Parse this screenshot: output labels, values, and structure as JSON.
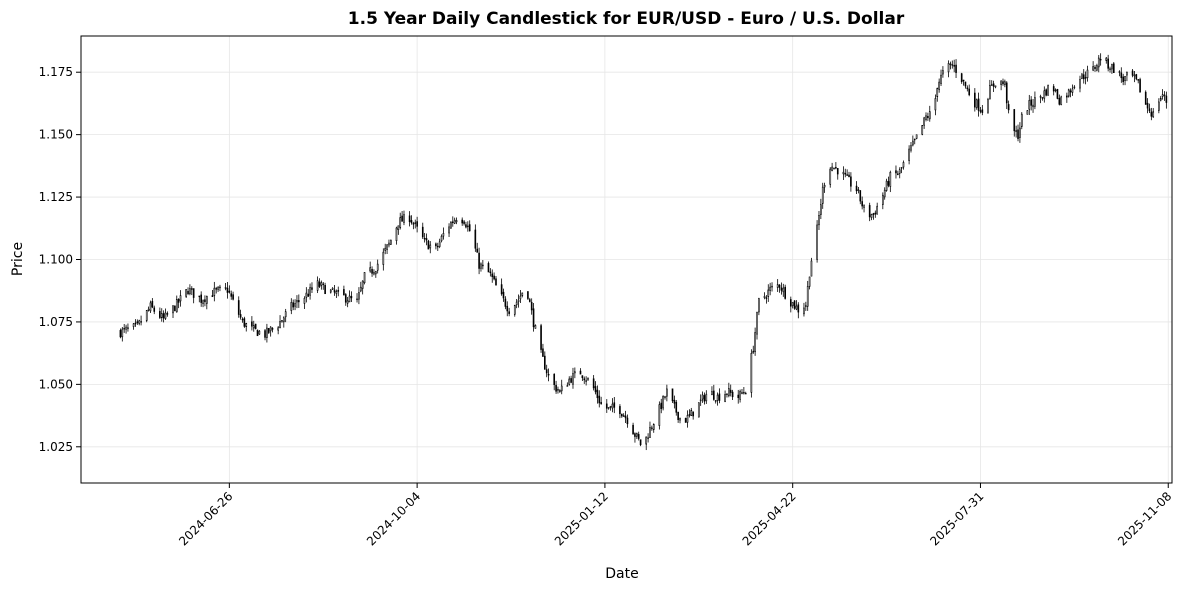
{
  "chart_data": {
    "type": "candlestick",
    "title": "1.5 Year Daily Candlestick for EUR/USD - Euro / U.S. Dollar",
    "xlabel": "Date",
    "ylabel": "Price",
    "ylim": [
      1.0105,
      1.1895
    ],
    "xlim": [
      "2024-04-08",
      "2025-11-10"
    ],
    "grid": true,
    "x_ticks": [
      "2024-06-26",
      "2024-10-04",
      "2025-01-12",
      "2025-04-22",
      "2025-07-31",
      "2025-11-08"
    ],
    "y_ticks": [
      "1.025",
      "1.050",
      "1.075",
      "1.100",
      "1.125",
      "1.150",
      "1.175"
    ],
    "anchors": [
      [
        "2024-04-29",
        1.071
      ],
      [
        "2024-05-08",
        1.073
      ],
      [
        "2024-05-15",
        1.081
      ],
      [
        "2024-05-22",
        1.076
      ],
      [
        "2024-05-29",
        1.082
      ],
      [
        "2024-06-04",
        1.088
      ],
      [
        "2024-06-11",
        1.084
      ],
      [
        "2024-06-18",
        1.087
      ],
      [
        "2024-06-25",
        1.088
      ],
      [
        "2024-06-28",
        1.083
      ],
      [
        "2024-07-03",
        1.075
      ],
      [
        "2024-07-08",
        1.072
      ],
      [
        "2024-07-15",
        1.07
      ],
      [
        "2024-07-22",
        1.074
      ],
      [
        "2024-07-29",
        1.081
      ],
      [
        "2024-08-05",
        1.085
      ],
      [
        "2024-08-12",
        1.09
      ],
      [
        "2024-08-19",
        1.087
      ],
      [
        "2024-08-26",
        1.085
      ],
      [
        "2024-09-02",
        1.083
      ],
      [
        "2024-09-06",
        1.093
      ],
      [
        "2024-09-12",
        1.097
      ],
      [
        "2024-09-19",
        1.106
      ],
      [
        "2024-09-24",
        1.115
      ],
      [
        "2024-09-30",
        1.117
      ],
      [
        "2024-10-04",
        1.112
      ],
      [
        "2024-10-08",
        1.107
      ],
      [
        "2024-10-14",
        1.104
      ],
      [
        "2024-10-20",
        1.113
      ],
      [
        "2024-10-25",
        1.117
      ],
      [
        "2024-10-29",
        1.116
      ],
      [
        "2024-11-02",
        1.11
      ],
      [
        "2024-11-06",
        1.098
      ],
      [
        "2024-11-12",
        1.094
      ],
      [
        "2024-11-17",
        1.086
      ],
      [
        "2024-11-22",
        1.08
      ],
      [
        "2024-11-27",
        1.084
      ],
      [
        "2024-12-01",
        1.09
      ],
      [
        "2024-12-05",
        1.075
      ],
      [
        "2024-12-09",
        1.062
      ],
      [
        "2024-12-14",
        1.051
      ],
      [
        "2024-12-19",
        1.047
      ],
      [
        "2024-12-24",
        1.052
      ],
      [
        "2024-12-30",
        1.055
      ],
      [
        "2025-01-05",
        1.05
      ],
      [
        "2025-01-10",
        1.042
      ],
      [
        "2025-01-14",
        1.04
      ],
      [
        "2025-01-19",
        1.041
      ],
      [
        "2025-01-24",
        1.036
      ],
      [
        "2025-01-28",
        1.03
      ],
      [
        "2025-02-01",
        1.025
      ],
      [
        "2025-02-05",
        1.032
      ],
      [
        "2025-02-10",
        1.04
      ],
      [
        "2025-02-14",
        1.047
      ],
      [
        "2025-02-17",
        1.042
      ],
      [
        "2025-02-22",
        1.035
      ],
      [
        "2025-02-26",
        1.037
      ],
      [
        "2025-03-03",
        1.042
      ],
      [
        "2025-03-08",
        1.047
      ],
      [
        "2025-03-13",
        1.045
      ],
      [
        "2025-03-18",
        1.047
      ],
      [
        "2025-03-24",
        1.045
      ],
      [
        "2025-03-28",
        1.048
      ],
      [
        "2025-04-01",
        1.065
      ],
      [
        "2025-04-04",
        1.083
      ],
      [
        "2025-04-10",
        1.088
      ],
      [
        "2025-04-15",
        1.09
      ],
      [
        "2025-04-20",
        1.084
      ],
      [
        "2025-04-25",
        1.08
      ],
      [
        "2025-04-29",
        1.082
      ],
      [
        "2025-05-01",
        1.095
      ],
      [
        "2025-05-03",
        1.105
      ],
      [
        "2025-05-05",
        1.112
      ],
      [
        "2025-05-08",
        1.128
      ],
      [
        "2025-05-11",
        1.138
      ],
      [
        "2025-05-16",
        1.136
      ],
      [
        "2025-05-21",
        1.132
      ],
      [
        "2025-05-26",
        1.128
      ],
      [
        "2025-05-31",
        1.118
      ],
      [
        "2025-06-04",
        1.118
      ],
      [
        "2025-06-09",
        1.126
      ],
      [
        "2025-06-13",
        1.133
      ],
      [
        "2025-06-18",
        1.135
      ],
      [
        "2025-06-23",
        1.143
      ],
      [
        "2025-06-28",
        1.15
      ],
      [
        "2025-07-02",
        1.157
      ],
      [
        "2025-07-06",
        1.159
      ],
      [
        "2025-07-08",
        1.17
      ],
      [
        "2025-07-12",
        1.176
      ],
      [
        "2025-07-16",
        1.178
      ],
      [
        "2025-07-20",
        1.174
      ],
      [
        "2025-07-24",
        1.168
      ],
      [
        "2025-07-28",
        1.163
      ],
      [
        "2025-08-01",
        1.16
      ],
      [
        "2025-08-05",
        1.168
      ],
      [
        "2025-08-09",
        1.172
      ],
      [
        "2025-08-13",
        1.17
      ],
      [
        "2025-08-16",
        1.152
      ],
      [
        "2025-08-20",
        1.15
      ],
      [
        "2025-08-23",
        1.16
      ],
      [
        "2025-08-28",
        1.163
      ],
      [
        "2025-09-02",
        1.166
      ],
      [
        "2025-09-07",
        1.17
      ],
      [
        "2025-09-11",
        1.164
      ],
      [
        "2025-09-16",
        1.167
      ],
      [
        "2025-09-20",
        1.172
      ],
      [
        "2025-09-25",
        1.174
      ],
      [
        "2025-09-29",
        1.176
      ],
      [
        "2025-10-03",
        1.181
      ],
      [
        "2025-10-07",
        1.178
      ],
      [
        "2025-10-11",
        1.176
      ],
      [
        "2025-10-15",
        1.172
      ],
      [
        "2025-10-19",
        1.174
      ],
      [
        "2025-10-23",
        1.17
      ],
      [
        "2025-10-27",
        1.162
      ],
      [
        "2025-10-31",
        1.158
      ],
      [
        "2025-11-03",
        1.164
      ],
      [
        "2025-11-05",
        1.166
      ],
      [
        "2025-11-08",
        1.162
      ]
    ]
  }
}
